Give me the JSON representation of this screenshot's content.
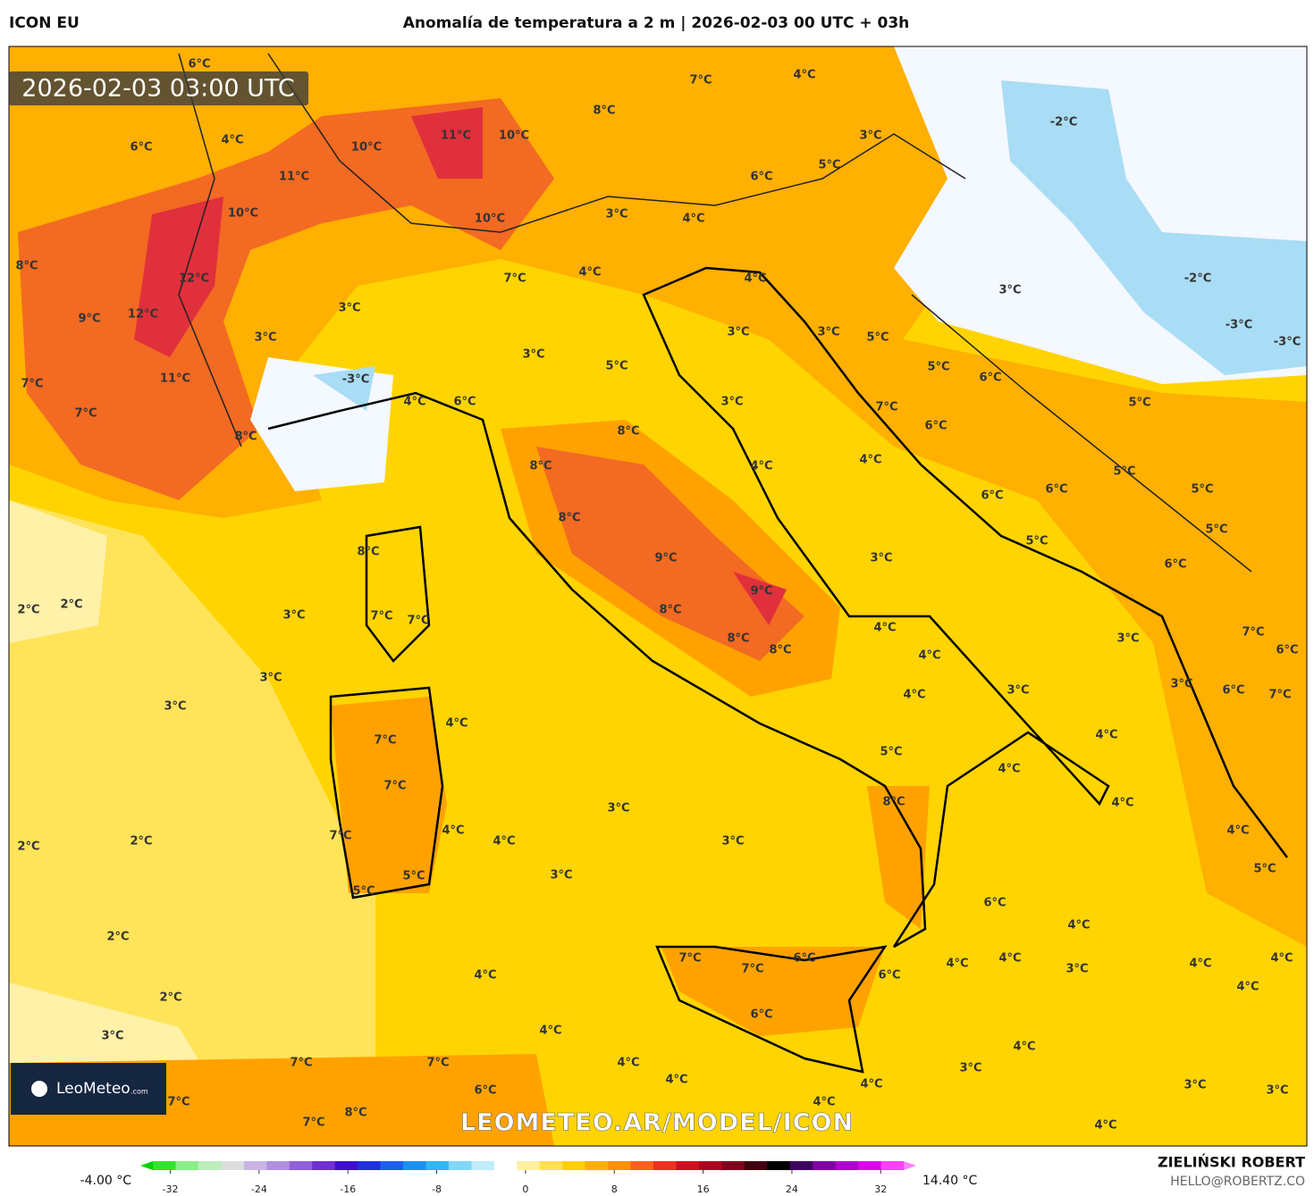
{
  "header": {
    "model": "ICON EU",
    "title": "Anomalía de temperatura a 2 m | 2026-02-03 00 UTC + 03h"
  },
  "map": {
    "timestamp": "2026-02-03 03:00 UTC",
    "watermark": "LEOMETEO.AR/MODEL/ICON",
    "logo": "LeoMeteo",
    "logo_suffix": ".com",
    "labels": [
      "6°C",
      "7°C",
      "6°C",
      "4°C",
      "10°C",
      "11°C",
      "10°C",
      "8°C",
      "4°C",
      "3°C",
      "-2°C",
      "5°C",
      "6°C",
      "11°C",
      "10°C",
      "10°C",
      "3°C",
      "4°C",
      "8°C",
      "12°C",
      "7°C",
      "4°C",
      "4°C",
      "3°C",
      "-2°C",
      "9°C",
      "12°C",
      "3°C",
      "3°C",
      "3°C",
      "5°C",
      "-3°C",
      "-3°C",
      "3°C",
      "3°C",
      "5°C",
      "11°C",
      "7°C",
      "-3°C",
      "4°C",
      "6°C",
      "3°C",
      "5°C",
      "6°C",
      "7°C",
      "5°C",
      "7°C",
      "8°C",
      "8°C",
      "6°C",
      "8°C",
      "4°C",
      "4°C",
      "5°C",
      "6°C",
      "6°C",
      "5°C",
      "8°C",
      "5°C",
      "5°C",
      "8°C",
      "9°C",
      "3°C",
      "6°C",
      "2°C",
      "2°C",
      "3°C",
      "7°C",
      "7°C",
      "9°C",
      "8°C",
      "4°C",
      "8°C",
      "8°C",
      "4°C",
      "3°C",
      "7°C",
      "6°C",
      "3°C",
      "4°C",
      "3°C",
      "3°C",
      "6°C",
      "7°C",
      "3°C",
      "4°C",
      "7°C",
      "4°C",
      "5°C",
      "4°C",
      "7°C",
      "8°C",
      "4°C",
      "3°C",
      "4°C",
      "7°C",
      "4°C",
      "2°C",
      "2°C",
      "3°C",
      "4°C",
      "5°C",
      "3°C",
      "5°C",
      "5°C",
      "6°C",
      "4°C",
      "2°C",
      "4°C",
      "7°C",
      "7°C",
      "6°C",
      "6°C",
      "4°C",
      "4°C",
      "3°C",
      "4°C",
      "4°C",
      "4°C",
      "2°C",
      "6°C",
      "3°C",
      "4°C",
      "4°C",
      "7°C",
      "7°C",
      "4°C",
      "3°C",
      "4°C",
      "4°C",
      "4°C",
      "3°C",
      "3°C",
      "6°C",
      "7°C",
      "8°C",
      "7°C",
      "4°C"
    ]
  },
  "colorbar": {
    "min_label": "-4.00 °C",
    "max_label": "14.40 °C",
    "lim": [
      -34.7,
      35.2
    ],
    "ticks": [
      -32,
      -24,
      -16,
      -8,
      0,
      8,
      16,
      24,
      32
    ],
    "colors": [
      "#00d400",
      "#33e333",
      "#88ee88",
      "#bbeebb",
      "#dddddd",
      "#c8b4e6",
      "#b090e0",
      "#9060d8",
      "#7030d0",
      "#4010d0",
      "#2030e0",
      "#2060f0",
      "#2090f0",
      "#30b8f0",
      "#80d8f8",
      "#c0ecfc",
      "#ffffff",
      "#fff0a0",
      "#ffe050",
      "#ffd000",
      "#ffb000",
      "#ff9000",
      "#ff6020",
      "#f03020",
      "#d01020",
      "#b00020",
      "#800020",
      "#400010",
      "#000000",
      "#400060",
      "#8000a0",
      "#b000d0",
      "#e000f0",
      "#ff40ff",
      "#ff80ff"
    ]
  },
  "footer": {
    "author": "ZIELIŃSKI ROBERT",
    "contact": "HELLO@ROBERTZ.CO"
  }
}
